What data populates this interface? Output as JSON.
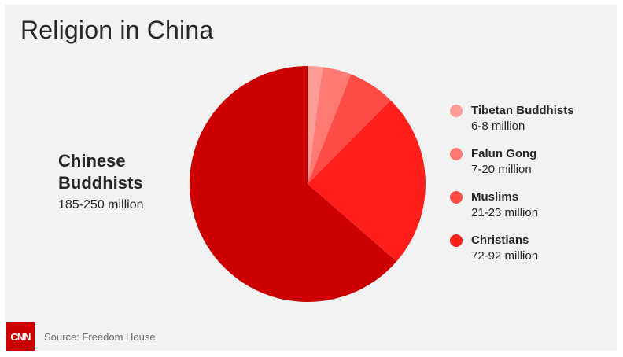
{
  "title": "Religion in China",
  "source": "Source: Freedom House",
  "logo_text": "CNN",
  "callout": {
    "name": "Chinese Buddhists",
    "value": "185-250 million"
  },
  "chart_data": {
    "type": "pie",
    "title": "Religion in China",
    "slices": [
      {
        "name": "Tibetan Buddhists",
        "label": "6-8 million",
        "value": 7,
        "color": "#ff9c96"
      },
      {
        "name": "Falun Gong",
        "label": "7-20 million",
        "value": 13.5,
        "color": "#ff7a73"
      },
      {
        "name": "Muslims",
        "label": "21-23 million",
        "value": 22,
        "color": "#ff4b45"
      },
      {
        "name": "Christians",
        "label": "72-92 million",
        "value": 82,
        "color": "#ff1f1a"
      },
      {
        "name": "Chinese Buddhists",
        "label": "185-250 million",
        "value": 217.5,
        "color": "#cc0000"
      }
    ],
    "legend_position": "right",
    "start_angle": "12 o'clock",
    "direction": "clockwise"
  }
}
